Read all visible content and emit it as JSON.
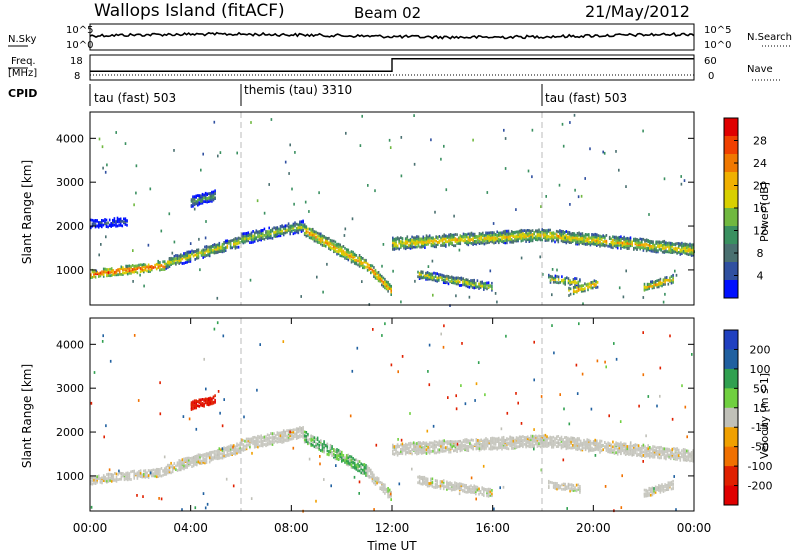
{
  "header": {
    "title": "Wallops Island (fitACF)",
    "beam": "Beam 02",
    "date": "21/May/2012"
  },
  "strip_sky": {
    "left_label": "N.Sky",
    "right_label": "N.Search",
    "left_ticks": [
      "10^5",
      "10^0"
    ],
    "right_ticks": [
      "10^5",
      "10^0"
    ]
  },
  "strip_freq": {
    "left_label_top": "Freq.",
    "left_label_bottom": "[MHz]",
    "right_label": "Nave",
    "left_ticks": [
      "18",
      "8"
    ],
    "right_ticks": [
      "60",
      "0"
    ]
  },
  "strip_cpid": {
    "label": "CPID",
    "segments": [
      {
        "start_hour": 0,
        "label": "tau (fast) 503"
      },
      {
        "start_hour": 6,
        "label": "themis (tau) 3310"
      },
      {
        "start_hour": 18,
        "label": "tau (fast) 503"
      }
    ]
  },
  "chart_data": [
    {
      "type": "heatmap",
      "panel": "power",
      "ylabel": "Slant Range [km]",
      "xlim": [
        0,
        24
      ],
      "ylim": [
        200,
        4600
      ],
      "yticks": [
        1000,
        2000,
        3000,
        4000
      ],
      "colorbar": {
        "label": "Power [dB]",
        "ticks": [
          "28",
          "24",
          "20",
          "16",
          "12",
          "8",
          "4"
        ],
        "colors": [
          "#e00000",
          "#f04000",
          "#f07800",
          "#f0b000",
          "#d8d000",
          "#70b840",
          "#3a9060",
          "#4a7070",
          "#3050a0",
          "#0010ff"
        ]
      },
      "bands": [
        {
          "from_hour": 0.0,
          "to_hour": 3.0,
          "range_start": 900,
          "range_end": 1100,
          "width": 150,
          "level": 27
        },
        {
          "from_hour": 3.0,
          "to_hour": 6.0,
          "range_start": 1150,
          "range_end": 1650,
          "width": 200,
          "level": 18
        },
        {
          "from_hour": 6.0,
          "to_hour": 8.5,
          "range_start": 1700,
          "range_end": 2000,
          "width": 220,
          "level": 16
        },
        {
          "from_hour": 8.5,
          "to_hour": 11.0,
          "range_start": 1900,
          "range_end": 1100,
          "width": 220,
          "level": 22
        },
        {
          "from_hour": 11.0,
          "to_hour": 12.0,
          "range_start": 1100,
          "range_end": 500,
          "width": 180,
          "level": 24
        },
        {
          "from_hour": 12.0,
          "to_hour": 18.0,
          "range_start": 1600,
          "range_end": 1800,
          "width": 230,
          "level": 20
        },
        {
          "from_hour": 18.0,
          "to_hour": 24.0,
          "range_start": 1800,
          "range_end": 1450,
          "width": 230,
          "level": 20
        },
        {
          "from_hour": 0.0,
          "to_hour": 1.5,
          "range_start": 2050,
          "range_end": 2100,
          "width": 150,
          "level": 5
        },
        {
          "from_hour": 4.0,
          "to_hour": 5.0,
          "range_start": 2550,
          "range_end": 2700,
          "width": 200,
          "level": 12
        },
        {
          "from_hour": 13.0,
          "to_hour": 16.0,
          "range_start": 900,
          "range_end": 600,
          "width": 150,
          "level": 18
        },
        {
          "from_hour": 18.2,
          "to_hour": 19.5,
          "range_start": 800,
          "range_end": 700,
          "width": 130,
          "level": 20
        },
        {
          "from_hour": 19.0,
          "to_hour": 20.2,
          "range_start": 500,
          "range_end": 700,
          "width": 130,
          "level": 24
        },
        {
          "from_hour": 22.0,
          "to_hour": 23.2,
          "range_start": 600,
          "range_end": 800,
          "width": 140,
          "level": 22
        }
      ]
    },
    {
      "type": "heatmap",
      "panel": "velocity",
      "ylabel": "Slant Range [km]",
      "xlabel": "Time UT",
      "xlim": [
        0,
        24
      ],
      "ylim": [
        200,
        4600
      ],
      "yticks": [
        1000,
        2000,
        3000,
        4000
      ],
      "xticks": [
        "00:00",
        "04:00",
        "08:00",
        "12:00",
        "16:00",
        "20:00",
        "00:00"
      ],
      "colorbar": {
        "label": "Velocity [m s-1]",
        "ticks": [
          "200",
          "100",
          "50",
          "15",
          "-15",
          "-50",
          "-100",
          "-200"
        ],
        "colors": [
          "#2040c0",
          "#2060a0",
          "#30a050",
          "#70d040",
          "#c0c0b8",
          "#f0a000",
          "#f07000",
          "#e02000",
          "#e00000"
        ]
      },
      "ground_scatter_color": "#c8c8c0",
      "bands": [
        {
          "from_hour": 0.0,
          "to_hour": 3.0,
          "range_start": 900,
          "range_end": 1100,
          "width": 150,
          "velocity": 0
        },
        {
          "from_hour": 3.0,
          "to_hour": 6.0,
          "range_start": 1150,
          "range_end": 1650,
          "width": 200,
          "velocity": 0
        },
        {
          "from_hour": 6.0,
          "to_hour": 8.5,
          "range_start": 1700,
          "range_end": 2000,
          "width": 220,
          "velocity": 0
        },
        {
          "from_hour": 8.5,
          "to_hour": 11.0,
          "range_start": 1900,
          "range_end": 1100,
          "width": 220,
          "velocity": 30
        },
        {
          "from_hour": 11.0,
          "to_hour": 12.0,
          "range_start": 1100,
          "range_end": 500,
          "width": 180,
          "velocity": 0
        },
        {
          "from_hour": 12.0,
          "to_hour": 18.0,
          "range_start": 1600,
          "range_end": 1800,
          "width": 230,
          "velocity": 0
        },
        {
          "from_hour": 18.0,
          "to_hour": 24.0,
          "range_start": 1800,
          "range_end": 1450,
          "width": 230,
          "velocity": 0
        },
        {
          "from_hour": 4.0,
          "to_hour": 5.0,
          "range_start": 2600,
          "range_end": 2750,
          "width": 150,
          "velocity": -150
        },
        {
          "from_hour": 13.0,
          "to_hour": 16.0,
          "range_start": 900,
          "range_end": 600,
          "width": 150,
          "velocity": 0
        },
        {
          "from_hour": 18.2,
          "to_hour": 19.5,
          "range_start": 800,
          "range_end": 700,
          "width": 130,
          "velocity": 0
        },
        {
          "from_hour": 22.0,
          "to_hour": 23.2,
          "range_start": 600,
          "range_end": 800,
          "width": 140,
          "velocity": 0
        }
      ]
    }
  ],
  "time_series": {
    "nsky_level": 0.55,
    "freq_switch_hour": 12.0,
    "freq_level_before": 0.35,
    "freq_level_after": 0.85,
    "nave_level": 0.2
  }
}
